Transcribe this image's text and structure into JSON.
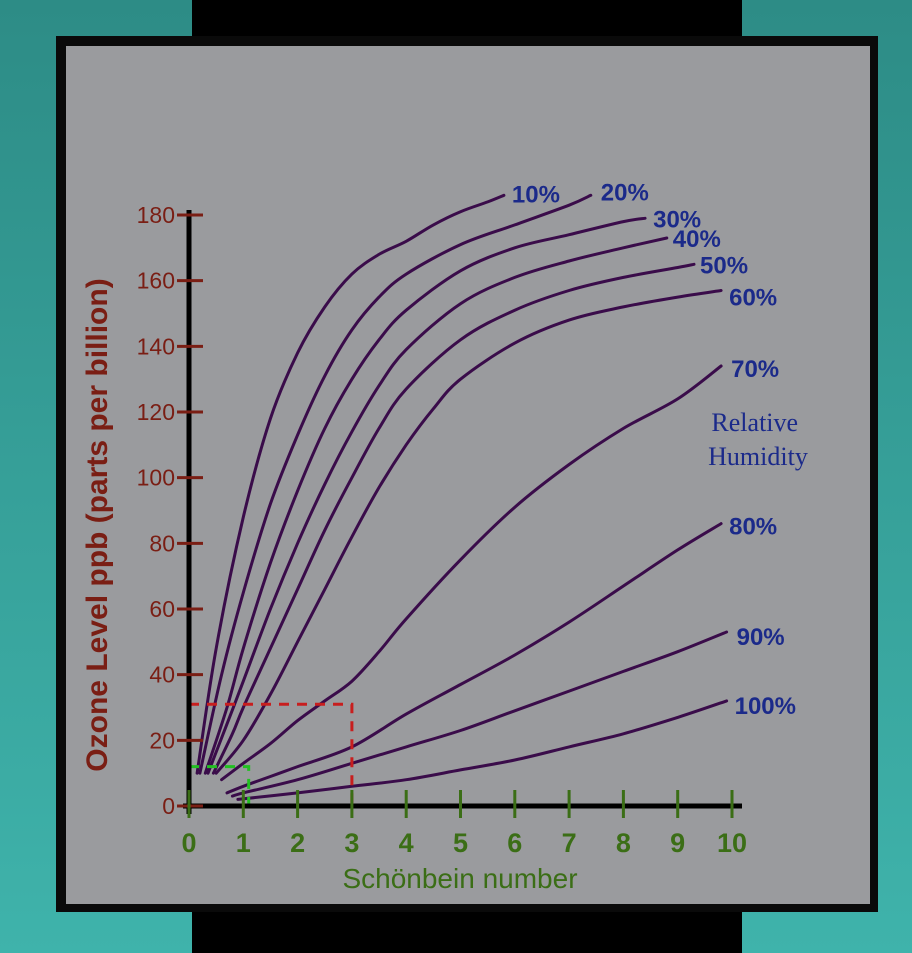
{
  "colors": {
    "background": "#9a9b9e",
    "frame": "#0a0a0a",
    "teal": "#36a49c",
    "axis": "#000000",
    "y_ticks": "#7a1e14",
    "x_ticks": "#3b6e16",
    "curve": "#3a0c4a",
    "curve_labels": "#1b2a8a",
    "red_guide": "#c81e1e",
    "green_guide": "#22c022"
  },
  "chart_data": {
    "type": "line",
    "xlabel": "Schönbein number",
    "ylabel": "Ozone Level ppb (parts per billion)",
    "xlim": [
      0,
      10
    ],
    "ylim": [
      0,
      180
    ],
    "x_ticks": [
      "0",
      "1",
      "2",
      "3",
      "4",
      "5",
      "6",
      "7",
      "8",
      "9",
      "10"
    ],
    "y_ticks": [
      "0",
      "20",
      "40",
      "60",
      "80",
      "100",
      "120",
      "140",
      "160",
      "180"
    ],
    "legend_title": "Relative\nHumidity",
    "legend_title_lines": [
      "Relative",
      "Humidity"
    ],
    "series": [
      {
        "name": "10%",
        "points": [
          [
            0.15,
            10
          ],
          [
            0.5,
            48
          ],
          [
            1,
            88
          ],
          [
            1.5,
            118
          ],
          [
            2,
            138
          ],
          [
            2.5,
            152
          ],
          [
            3,
            162
          ],
          [
            3.5,
            168
          ],
          [
            4,
            172
          ],
          [
            4.5,
            177
          ],
          [
            5,
            181
          ],
          [
            5.5,
            184
          ],
          [
            5.8,
            186
          ]
        ]
      },
      {
        "name": "20%",
        "points": [
          [
            0.2,
            10
          ],
          [
            0.6,
            40
          ],
          [
            1,
            65
          ],
          [
            1.5,
            92
          ],
          [
            2,
            113
          ],
          [
            2.5,
            131
          ],
          [
            3,
            145
          ],
          [
            3.5,
            155
          ],
          [
            4,
            162
          ],
          [
            5,
            171
          ],
          [
            6,
            177
          ],
          [
            7,
            183
          ],
          [
            7.4,
            186
          ]
        ]
      },
      {
        "name": "30%",
        "points": [
          [
            0.3,
            10
          ],
          [
            0.7,
            30
          ],
          [
            1,
            48
          ],
          [
            1.5,
            74
          ],
          [
            2,
            96
          ],
          [
            2.5,
            115
          ],
          [
            3,
            130
          ],
          [
            3.5,
            142
          ],
          [
            4,
            151
          ],
          [
            5,
            163
          ],
          [
            6,
            170
          ],
          [
            7,
            174
          ],
          [
            8,
            178
          ],
          [
            8.4,
            179
          ]
        ]
      },
      {
        "name": "40%",
        "points": [
          [
            0.35,
            10
          ],
          [
            0.7,
            25
          ],
          [
            1,
            38
          ],
          [
            1.5,
            60
          ],
          [
            2,
            80
          ],
          [
            2.5,
            98
          ],
          [
            3,
            114
          ],
          [
            3.5,
            128
          ],
          [
            4,
            139
          ],
          [
            5,
            153
          ],
          [
            6,
            161
          ],
          [
            7,
            166
          ],
          [
            8,
            170
          ],
          [
            8.8,
            173
          ]
        ]
      },
      {
        "name": "50%",
        "points": [
          [
            0.45,
            10
          ],
          [
            0.8,
            22
          ],
          [
            1,
            30
          ],
          [
            1.5,
            48
          ],
          [
            2,
            66
          ],
          [
            2.5,
            84
          ],
          [
            3,
            100
          ],
          [
            3.5,
            115
          ],
          [
            4,
            127
          ],
          [
            5,
            142
          ],
          [
            6,
            151
          ],
          [
            7,
            157
          ],
          [
            8,
            161
          ],
          [
            9,
            164
          ],
          [
            9.3,
            165
          ]
        ]
      },
      {
        "name": "60%",
        "points": [
          [
            0.5,
            10
          ],
          [
            1,
            20
          ],
          [
            1.5,
            34
          ],
          [
            2,
            50
          ],
          [
            2.5,
            66
          ],
          [
            3,
            82
          ],
          [
            3.5,
            97
          ],
          [
            4,
            110
          ],
          [
            4.5,
            121
          ],
          [
            5,
            130
          ],
          [
            6,
            141
          ],
          [
            7,
            148
          ],
          [
            8,
            152
          ],
          [
            9,
            155
          ],
          [
            9.8,
            157
          ]
        ]
      },
      {
        "name": "70%",
        "points": [
          [
            0.6,
            8
          ],
          [
            1,
            13
          ],
          [
            1.5,
            19
          ],
          [
            2,
            26
          ],
          [
            2.5,
            32
          ],
          [
            3,
            38
          ],
          [
            3.5,
            47
          ],
          [
            4,
            57
          ],
          [
            5,
            75
          ],
          [
            6,
            91
          ],
          [
            7,
            104
          ],
          [
            8,
            115
          ],
          [
            9,
            124
          ],
          [
            9.8,
            134
          ]
        ]
      },
      {
        "name": "80%",
        "points": [
          [
            0.7,
            4
          ],
          [
            1,
            6
          ],
          [
            1.5,
            9
          ],
          [
            2,
            12
          ],
          [
            3,
            18
          ],
          [
            4,
            28
          ],
          [
            5,
            37
          ],
          [
            6,
            46
          ],
          [
            7,
            56
          ],
          [
            8,
            67
          ],
          [
            9,
            78
          ],
          [
            9.8,
            86
          ]
        ]
      },
      {
        "name": "90%",
        "points": [
          [
            0.8,
            3
          ],
          [
            1,
            4
          ],
          [
            2,
            8
          ],
          [
            3,
            13
          ],
          [
            4,
            18
          ],
          [
            5,
            23
          ],
          [
            6,
            29
          ],
          [
            7,
            35
          ],
          [
            8,
            41
          ],
          [
            9,
            47
          ],
          [
            9.9,
            53
          ]
        ]
      },
      {
        "name": "100%",
        "points": [
          [
            0.9,
            2
          ],
          [
            2,
            4
          ],
          [
            3,
            6
          ],
          [
            4,
            8
          ],
          [
            5,
            11
          ],
          [
            6,
            14
          ],
          [
            7,
            18
          ],
          [
            8,
            22
          ],
          [
            9,
            27
          ],
          [
            9.9,
            32
          ]
        ]
      }
    ],
    "annotations": [
      {
        "name": "red-guide",
        "x": 3,
        "y": 31
      },
      {
        "name": "green-guide",
        "x": 1.1,
        "y": 12
      }
    ],
    "grid": false
  }
}
